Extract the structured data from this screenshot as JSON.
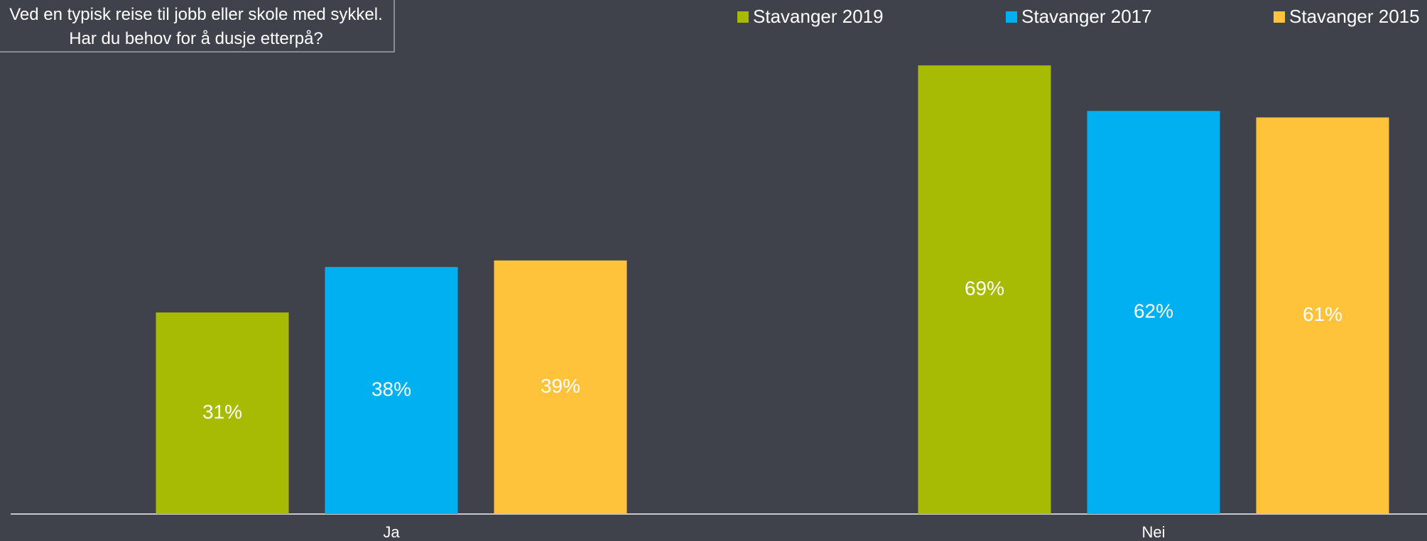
{
  "chart_data": {
    "type": "bar",
    "title": "Ved en typisk reise til jobb eller skole med sykkel. Har du behov for å dusje etterpå?",
    "categories": [
      "Ja",
      "Nei"
    ],
    "series": [
      {
        "name": "Stavanger 2019",
        "color": "#a8bb04",
        "values": [
          31,
          69
        ],
        "value_labels": [
          "31%",
          "69%"
        ]
      },
      {
        "name": "Stavanger 2017",
        "color": "#00b0f0",
        "values": [
          38,
          62
        ],
        "value_labels": [
          "38%",
          "62%"
        ]
      },
      {
        "name": "Stavanger 2015",
        "color": "#fec33a",
        "values": [
          39,
          61
        ],
        "value_labels": [
          "39%",
          "61%"
        ]
      }
    ],
    "ylim": [
      0,
      70
    ],
    "legend": "top-right"
  }
}
